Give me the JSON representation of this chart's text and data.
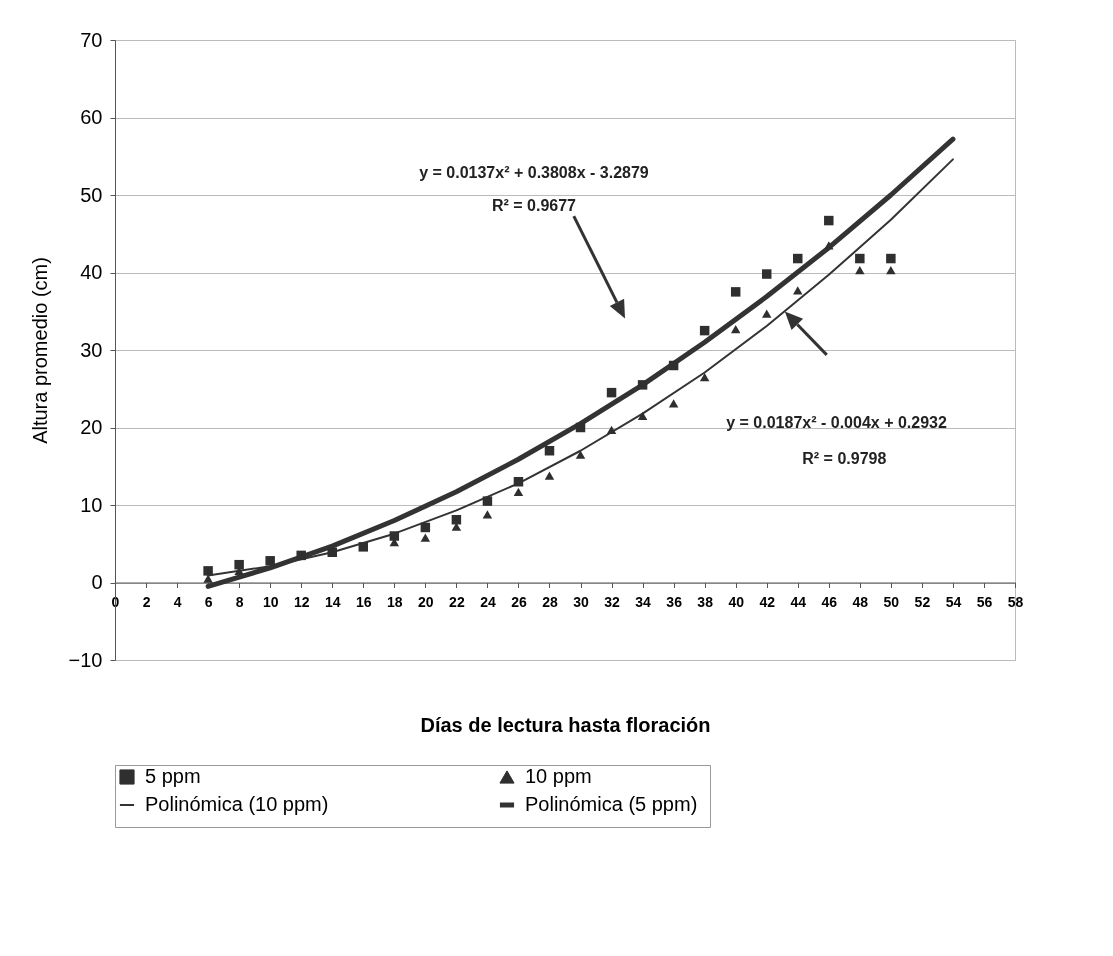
{
  "chart_data": {
    "type": "scatter",
    "xlabel": "Días de lectura hasta floración",
    "ylabel": "Altura promedio (cm)",
    "x": [
      6,
      8,
      10,
      12,
      14,
      16,
      18,
      20,
      22,
      24,
      26,
      28,
      30,
      32,
      34,
      36,
      38,
      40,
      42,
      44,
      46,
      48,
      50
    ],
    "series": [
      {
        "name": "5 ppm",
        "type": "scatter",
        "marker": "square",
        "color": "#2f2f2f",
        "values": [
          1.5,
          2.3,
          2.8,
          3.5,
          3.9,
          4.6,
          6.0,
          7.1,
          8.1,
          10.5,
          13.0,
          17.0,
          20.0,
          24.5,
          25.5,
          28.0,
          32.5,
          37.5,
          39.8,
          41.8,
          46.7,
          41.8,
          41.8
        ]
      },
      {
        "name": "10 ppm",
        "type": "scatter",
        "marker": "triangle",
        "color": "#2f2f2f",
        "values": [
          0.5,
          1.5,
          null,
          null,
          null,
          null,
          5.2,
          5.8,
          7.2,
          8.8,
          11.7,
          13.8,
          16.5,
          19.7,
          21.5,
          23.1,
          26.5,
          32.7,
          34.7,
          37.7,
          43.5,
          40.3,
          40.3
        ]
      },
      {
        "name": "Polinómica (10 ppm)",
        "type": "line",
        "color": "#333333",
        "x": [
          6,
          10,
          14,
          18,
          22,
          26,
          30,
          34,
          38,
          42,
          46,
          50,
          54
        ],
        "values": [
          0.9,
          2.1,
          3.9,
          6.3,
          9.3,
          12.8,
          17.0,
          21.8,
          27.1,
          33.1,
          39.7,
          46.8,
          54.6
        ]
      },
      {
        "name": "Polinómica (5 ppm)",
        "type": "line",
        "color": "#333333",
        "x": [
          6,
          10,
          14,
          18,
          22,
          26,
          30,
          34,
          38,
          42,
          46,
          50,
          54
        ],
        "values": [
          -0.5,
          1.9,
          4.7,
          8.0,
          11.7,
          15.9,
          20.5,
          25.5,
          31.0,
          36.9,
          43.2,
          50.0,
          57.2
        ]
      }
    ],
    "annotations": [
      "y = 0.0137x² + 0.3808x - 3.2879",
      "R² = 0.9677",
      "y = 0.0187x² - 0.004x + 0.2932",
      "R² = 0.9798"
    ],
    "xlim": [
      0,
      58
    ],
    "xticks": [
      0,
      2,
      4,
      6,
      8,
      10,
      12,
      14,
      16,
      18,
      20,
      22,
      24,
      26,
      28,
      30,
      32,
      34,
      36,
      38,
      40,
      42,
      44,
      46,
      48,
      50,
      52,
      54,
      56,
      58
    ],
    "ylim": [
      -10,
      70
    ],
    "yticks": [
      -10,
      0,
      10,
      20,
      30,
      40,
      50,
      60,
      70
    ],
    "grid": "y",
    "legend": "bottom"
  }
}
